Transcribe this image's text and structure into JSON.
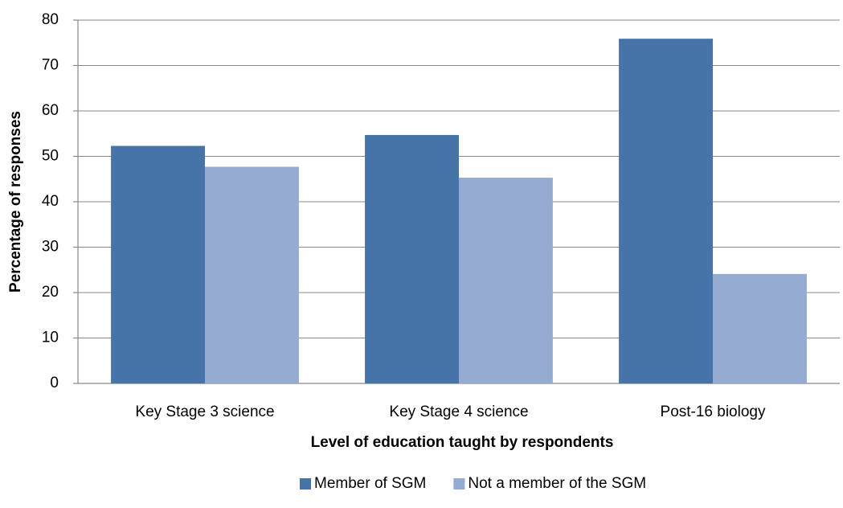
{
  "chart_data": {
    "type": "bar",
    "x_label": "Level of education taught by respondents",
    "y_label": "Percentage of responses",
    "categories": [
      "Key Stage 3 science",
      "Key Stage 4 science",
      "Post-16 biology"
    ],
    "series": [
      {
        "name": "Member of SGM",
        "color": "#4674a9",
        "values": [
          52.3,
          54.7,
          75.9
        ]
      },
      {
        "name": "Not a member of the SGM",
        "color": "#95abd2",
        "values": [
          47.7,
          45.3,
          24.1
        ]
      }
    ],
    "ylim": [
      0,
      80
    ],
    "yticks": [
      0,
      10,
      20,
      30,
      40,
      50,
      60,
      70,
      80
    ],
    "grid": true,
    "legend": "bottom"
  }
}
